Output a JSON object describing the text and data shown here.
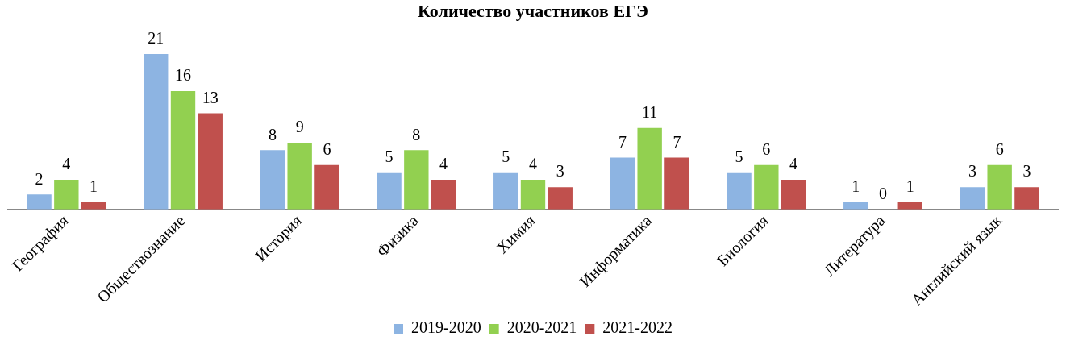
{
  "chart_data": {
    "type": "bar",
    "title": "Количество участников ЕГЭ",
    "categories": [
      "География",
      "Обществознание",
      "История",
      "Физика",
      "Химия",
      "Информатика",
      "Биология",
      "Литература",
      "Английский язык"
    ],
    "series": [
      {
        "name": "2019-2020",
        "color": "#8db4e2",
        "values": [
          2,
          21,
          8,
          5,
          5,
          7,
          5,
          1,
          3
        ]
      },
      {
        "name": "2020-2021",
        "color": "#92d050",
        "values": [
          4,
          16,
          9,
          8,
          4,
          11,
          6,
          0,
          6
        ]
      },
      {
        "name": "2021-2022",
        "color": "#c0504d",
        "values": [
          1,
          13,
          6,
          4,
          3,
          7,
          4,
          1,
          3
        ]
      }
    ],
    "data_labels": true,
    "legend": "bottom",
    "tick_labels": "x",
    "grid": false
  }
}
